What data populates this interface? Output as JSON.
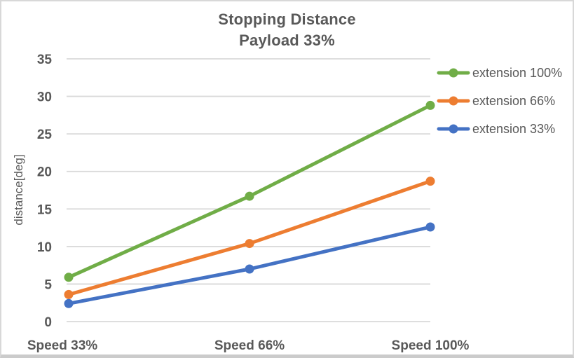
{
  "window": {
    "background": "#ffffff",
    "border_color": "#d8d8d8"
  },
  "chart_data": {
    "type": "line",
    "title": "Stopping Distance",
    "subtitle": "Payload 33%",
    "ylabel": "distance[deg]",
    "xlabel": "",
    "categories": [
      "Speed 33%",
      "Speed 66%",
      "Speed 100%"
    ],
    "y_ticks": [
      0,
      5,
      10,
      15,
      20,
      25,
      30,
      35
    ],
    "ylim": [
      0,
      35
    ],
    "grid": true,
    "grid_color": "#d9d9d9",
    "text_color": "#595959",
    "legend_position": "right",
    "series": [
      {
        "name": "extension 100%",
        "color": "#70AD47",
        "values": [
          5.9,
          16.7,
          28.8
        ]
      },
      {
        "name": "extension 66%",
        "color": "#ED7D31",
        "values": [
          3.6,
          10.4,
          18.7
        ]
      },
      {
        "name": "extension 33%",
        "color": "#4472C4",
        "values": [
          2.4,
          7.0,
          12.6
        ]
      }
    ]
  }
}
